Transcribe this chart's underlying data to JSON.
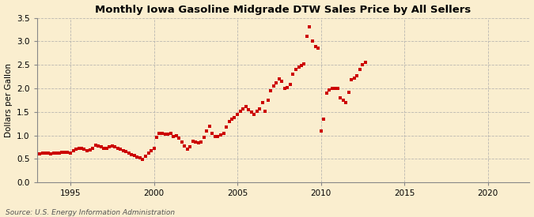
{
  "title": "Monthly Iowa Gasoline Midgrade DTW Sales Price by All Sellers",
  "ylabel": "Dollars per Gallon",
  "source_text": "Source: U.S. Energy Information Administration",
  "background_color": "#faeecf",
  "marker_color": "#cc0000",
  "xlim": [
    1993.0,
    2022.5
  ],
  "ylim": [
    0.0,
    3.5
  ],
  "yticks": [
    0.0,
    0.5,
    1.0,
    1.5,
    2.0,
    2.5,
    3.0,
    3.5
  ],
  "xticks": [
    1995,
    2000,
    2005,
    2010,
    2015,
    2020
  ],
  "data": [
    [
      1993.17,
      0.6
    ],
    [
      1993.33,
      0.63
    ],
    [
      1993.5,
      0.63
    ],
    [
      1993.67,
      0.62
    ],
    [
      1993.83,
      0.61
    ],
    [
      1994.0,
      0.62
    ],
    [
      1994.17,
      0.62
    ],
    [
      1994.33,
      0.63
    ],
    [
      1994.5,
      0.64
    ],
    [
      1994.67,
      0.64
    ],
    [
      1994.83,
      0.64
    ],
    [
      1995.0,
      0.63
    ],
    [
      1995.17,
      0.67
    ],
    [
      1995.33,
      0.7
    ],
    [
      1995.5,
      0.72
    ],
    [
      1995.67,
      0.72
    ],
    [
      1995.83,
      0.7
    ],
    [
      1996.0,
      0.68
    ],
    [
      1996.17,
      0.69
    ],
    [
      1996.33,
      0.73
    ],
    [
      1996.5,
      0.79
    ],
    [
      1996.67,
      0.78
    ],
    [
      1996.83,
      0.76
    ],
    [
      1997.0,
      0.73
    ],
    [
      1997.17,
      0.72
    ],
    [
      1997.33,
      0.75
    ],
    [
      1997.5,
      0.77
    ],
    [
      1997.67,
      0.75
    ],
    [
      1997.83,
      0.73
    ],
    [
      1998.0,
      0.7
    ],
    [
      1998.17,
      0.68
    ],
    [
      1998.33,
      0.65
    ],
    [
      1998.5,
      0.62
    ],
    [
      1998.67,
      0.59
    ],
    [
      1998.83,
      0.57
    ],
    [
      1999.0,
      0.54
    ],
    [
      1999.17,
      0.53
    ],
    [
      1999.33,
      0.49
    ],
    [
      1999.5,
      0.56
    ],
    [
      1999.67,
      0.63
    ],
    [
      1999.83,
      0.68
    ],
    [
      2000.0,
      0.72
    ],
    [
      2000.17,
      0.96
    ],
    [
      2000.33,
      1.04
    ],
    [
      2000.5,
      1.04
    ],
    [
      2000.67,
      1.02
    ],
    [
      2000.83,
      1.03
    ],
    [
      2001.0,
      1.05
    ],
    [
      2001.17,
      0.98
    ],
    [
      2001.33,
      1.0
    ],
    [
      2001.5,
      0.94
    ],
    [
      2001.67,
      0.85
    ],
    [
      2001.83,
      0.78
    ],
    [
      2002.0,
      0.71
    ],
    [
      2002.17,
      0.75
    ],
    [
      2002.33,
      0.87
    ],
    [
      2002.5,
      0.85
    ],
    [
      2002.67,
      0.84
    ],
    [
      2002.83,
      0.85
    ],
    [
      2003.0,
      0.96
    ],
    [
      2003.17,
      1.09
    ],
    [
      2003.33,
      1.2
    ],
    [
      2003.5,
      1.05
    ],
    [
      2003.67,
      0.98
    ],
    [
      2003.83,
      0.97
    ],
    [
      2004.0,
      1.01
    ],
    [
      2004.17,
      1.04
    ],
    [
      2004.33,
      1.18
    ],
    [
      2004.5,
      1.3
    ],
    [
      2004.67,
      1.34
    ],
    [
      2004.83,
      1.38
    ],
    [
      2005.0,
      1.45
    ],
    [
      2005.17,
      1.52
    ],
    [
      2005.33,
      1.57
    ],
    [
      2005.5,
      1.62
    ],
    [
      2005.67,
      1.55
    ],
    [
      2005.83,
      1.5
    ],
    [
      2006.0,
      1.45
    ],
    [
      2006.17,
      1.52
    ],
    [
      2006.33,
      1.57
    ],
    [
      2006.5,
      1.7
    ],
    [
      2006.67,
      1.52
    ],
    [
      2006.83,
      1.75
    ],
    [
      2007.0,
      1.95
    ],
    [
      2007.17,
      2.05
    ],
    [
      2007.33,
      2.12
    ],
    [
      2007.5,
      2.2
    ],
    [
      2007.67,
      2.15
    ],
    [
      2007.83,
      2.0
    ],
    [
      2008.0,
      2.01
    ],
    [
      2008.17,
      2.08
    ],
    [
      2008.33,
      2.3
    ],
    [
      2008.5,
      2.4
    ],
    [
      2008.67,
      2.45
    ],
    [
      2008.83,
      2.48
    ],
    [
      2009.0,
      2.52
    ],
    [
      2009.17,
      3.1
    ],
    [
      2009.33,
      3.3
    ],
    [
      2009.5,
      3.0
    ],
    [
      2009.67,
      2.88
    ],
    [
      2009.83,
      2.85
    ],
    [
      2010.0,
      1.1
    ],
    [
      2010.17,
      1.35
    ],
    [
      2010.33,
      1.9
    ],
    [
      2010.5,
      1.97
    ],
    [
      2010.67,
      2.0
    ],
    [
      2010.83,
      2.0
    ],
    [
      2011.0,
      2.0
    ],
    [
      2011.17,
      1.8
    ],
    [
      2011.33,
      1.75
    ],
    [
      2011.5,
      1.7
    ],
    [
      2011.67,
      1.92
    ],
    [
      2011.83,
      2.18
    ],
    [
      2012.0,
      2.22
    ],
    [
      2012.17,
      2.27
    ],
    [
      2012.33,
      2.4
    ],
    [
      2012.5,
      2.5
    ],
    [
      2012.67,
      2.55
    ]
  ]
}
